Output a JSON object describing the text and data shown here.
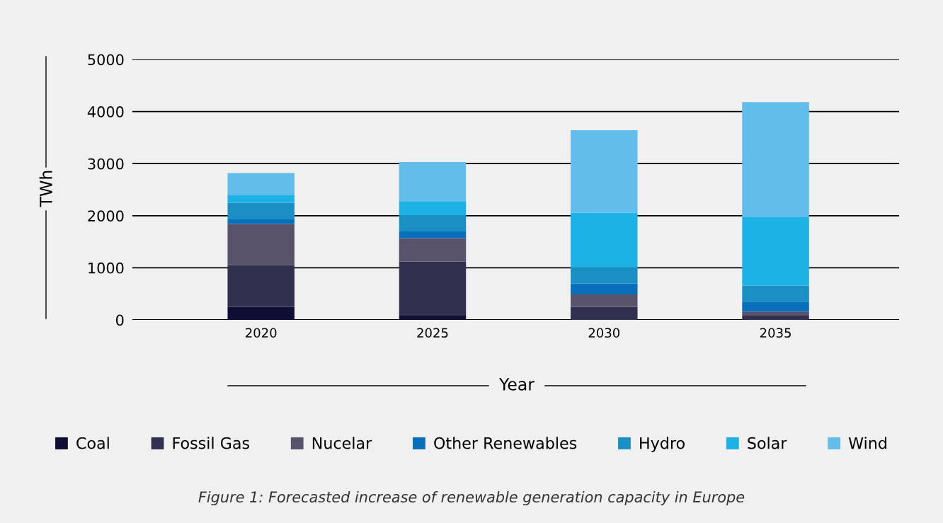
{
  "chart_data": {
    "type": "bar",
    "stacked": true,
    "xlabel": "Year",
    "ylabel": "TWh",
    "categories": [
      "2020",
      "2025",
      "2030",
      "2035"
    ],
    "series": [
      {
        "name": "Coal",
        "color": "#0f0f35",
        "values": [
          250,
          80,
          0,
          0
        ]
      },
      {
        "name": "Fossil Gas",
        "color": "#31304e",
        "values": [
          800,
          1040,
          250,
          80
        ]
      },
      {
        "name": "Nucelar",
        "color": "#58536b",
        "values": [
          790,
          450,
          240,
          80
        ]
      },
      {
        "name": "Other Renewables",
        "color": "#086fba",
        "values": [
          90,
          130,
          210,
          190
        ]
      },
      {
        "name": "Hydro",
        "color": "#1a8fc4",
        "values": [
          320,
          310,
          310,
          310
        ]
      },
      {
        "name": "Solar",
        "color": "#1cb2e6",
        "values": [
          150,
          270,
          1050,
          1320
        ]
      },
      {
        "name": "Wind",
        "color": "#63bdeb",
        "values": [
          420,
          750,
          1580,
          2200
        ]
      }
    ],
    "ylim": [
      0,
      5000
    ],
    "yticks": [
      0,
      1000,
      2000,
      3000,
      4000,
      5000
    ],
    "grid": "y",
    "legend": "bottom",
    "annotations": [
      "Figure 1: Forecasted increase of renewable generation capacity in Europe"
    ]
  }
}
